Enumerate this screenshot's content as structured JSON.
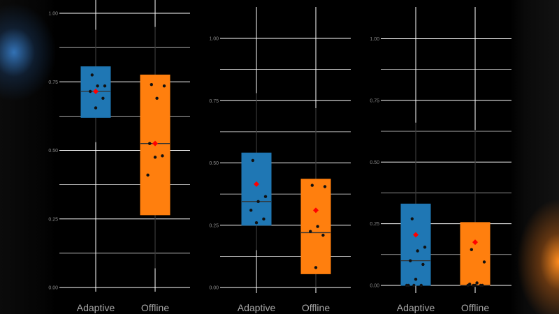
{
  "chart_data": [
    {
      "type": "box",
      "ylim": [
        0,
        1.05
      ],
      "y_ticks": [
        0,
        0.25,
        0.5,
        0.75,
        1.0
      ],
      "y_tick_labels": [
        "0.00",
        "0.25",
        "0.50",
        "0.75",
        "1.00"
      ],
      "grid": true,
      "categories": [
        "Adaptive",
        "Offline"
      ],
      "series": [
        {
          "q1": 0.62,
          "median": 0.715,
          "q3": 0.805,
          "whisker_low": 0.53,
          "whisker_high": 0.94,
          "mean": 0.715,
          "points": [
            0.775,
            0.735,
            0.735,
            0.715,
            0.69,
            0.655
          ]
        },
        {
          "q1": 0.265,
          "median": 0.525,
          "q3": 0.775,
          "whisker_low": 0.07,
          "whisker_high": 0.95,
          "mean": 0.525,
          "points": [
            0.74,
            0.735,
            0.69,
            0.525,
            0.48,
            0.475,
            0.41
          ]
        }
      ]
    },
    {
      "type": "box",
      "ylim": [
        0,
        1.1
      ],
      "y_ticks": [
        0,
        0.25,
        0.5,
        0.75,
        1.0
      ],
      "y_tick_labels": [
        "0.00",
        "0.25",
        "0.50",
        "0.75",
        "1.00"
      ],
      "grid": true,
      "categories": [
        "Adaptive",
        "Offline"
      ],
      "series": [
        {
          "q1": 0.25,
          "median": 0.345,
          "q3": 0.54,
          "whisker_low": 0.15,
          "whisker_high": 0.78,
          "mean": 0.415,
          "points": [
            0.51,
            0.365,
            0.345,
            0.31,
            0.275,
            0.26
          ]
        },
        {
          "q1": 0.055,
          "median": 0.22,
          "q3": 0.435,
          "whisker_low": 0.0,
          "whisker_high": 0.72,
          "mean": 0.31,
          "points": [
            0.41,
            0.405,
            0.245,
            0.225,
            0.21,
            0.08
          ]
        }
      ]
    },
    {
      "type": "box",
      "ylim": [
        0,
        1.1
      ],
      "y_ticks": [
        0,
        0.25,
        0.5,
        0.75,
        1.0
      ],
      "y_tick_labels": [
        "0.00",
        "0.25",
        "0.50",
        "0.75",
        "1.00"
      ],
      "grid": true,
      "categories": [
        "Adaptive",
        "Offline"
      ],
      "series": [
        {
          "q1": 0.0,
          "median": 0.1,
          "q3": 0.33,
          "whisker_low": 0.0,
          "whisker_high": 0.66,
          "mean": 0.205,
          "points": [
            0.27,
            0.155,
            0.14,
            0.1,
            0.085,
            0.025,
            0.0,
            0.0,
            0.0,
            0.0
          ]
        },
        {
          "q1": 0.0,
          "median": 0.0,
          "q3": 0.255,
          "whisker_low": 0.0,
          "whisker_high": 0.63,
          "mean": 0.175,
          "points": [
            0.145,
            0.095,
            0.01,
            0.005,
            0.0,
            0.0,
            0.0,
            0.0,
            0.0
          ]
        }
      ]
    }
  ],
  "colors": {
    "adaptive": "#1f77b4",
    "offline": "#ff7f0e",
    "mean_marker": "#ff0000",
    "grid": "#ffffff",
    "background": "#000000"
  }
}
